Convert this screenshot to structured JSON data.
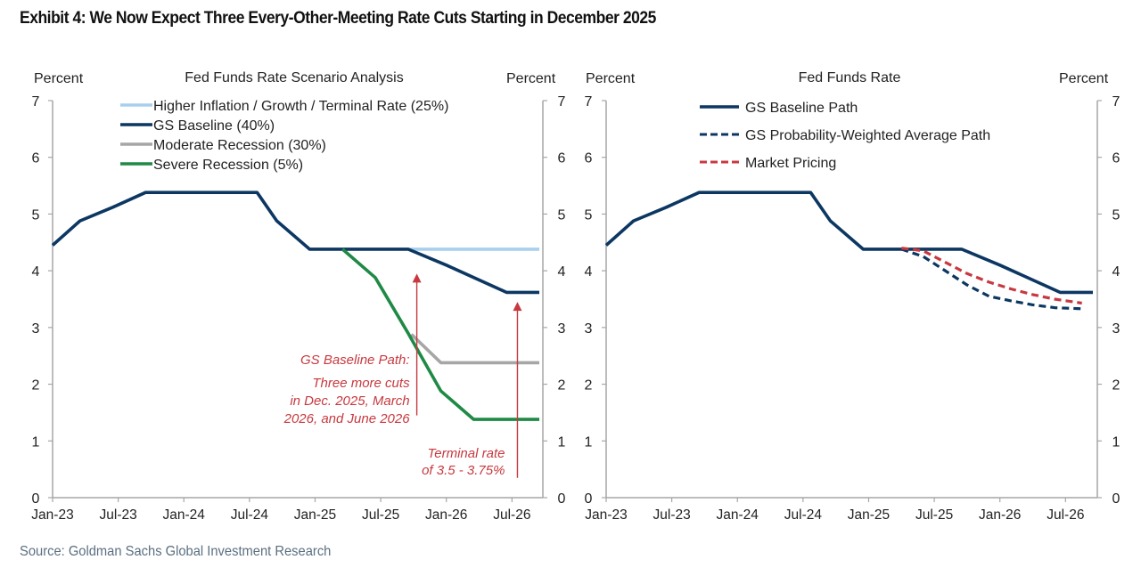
{
  "page": {
    "title": "Exhibit 4: We Now Expect Three Every-Other-Meeting Rate Cuts Starting in December 2025",
    "source": "Source: Goldman Sachs Global Investment Research"
  },
  "colors": {
    "navy": "#0c3762",
    "light_blue": "#a9cfee",
    "gray": "#a6a6a6",
    "green": "#1f8a45",
    "red": "#c7393f",
    "axis": "#a6a6a6"
  },
  "chart_data": [
    {
      "type": "line",
      "title": "Fed Funds Rate Scenario Analysis",
      "ylabel_left": "Percent",
      "ylabel_right": "Percent",
      "ylim": [
        0,
        7
      ],
      "yticks": [
        "0",
        "1",
        "2",
        "3",
        "4",
        "5",
        "6",
        "7"
      ],
      "xticks": [
        "Jan-23",
        "Jul-23",
        "Jan-24",
        "Jul-24",
        "Jan-25",
        "Jul-25",
        "Jan-26",
        "Jul-26"
      ],
      "x_unit": "months since Jan-23",
      "xlim": [
        0,
        44.5
      ],
      "legend_position": "top-center",
      "series": [
        {
          "name": "Higher Inflation / Growth / Terminal Rate (25%)",
          "color_key": "light_blue",
          "style": "solid",
          "points": [
            [
              32.5,
              4.38
            ],
            [
              44.5,
              4.38
            ]
          ]
        },
        {
          "name": "GS Baseline (40%)",
          "color_key": "navy",
          "style": "solid",
          "points": [
            [
              0,
              4.45
            ],
            [
              2.5,
              4.88
            ],
            [
              5.5,
              5.12
            ],
            [
              8.5,
              5.38
            ],
            [
              18.7,
              5.38
            ],
            [
              20.5,
              4.88
            ],
            [
              23.5,
              4.38
            ],
            [
              32.5,
              4.38
            ],
            [
              36,
              4.1
            ],
            [
              41.5,
              3.62
            ],
            [
              44.5,
              3.62
            ]
          ]
        },
        {
          "name": "Moderate Recession (30%)",
          "color_key": "gray",
          "style": "solid",
          "points": [
            [
              32.8,
              2.88
            ],
            [
              35.5,
              2.38
            ],
            [
              44.5,
              2.38
            ]
          ]
        },
        {
          "name": "Severe Recession (5%)",
          "color_key": "green",
          "style": "solid",
          "points": [
            [
              26.5,
              4.38
            ],
            [
              29.5,
              3.88
            ],
            [
              32.5,
              2.9
            ],
            [
              35.5,
              1.88
            ],
            [
              38.5,
              1.38
            ],
            [
              44.5,
              1.38
            ]
          ]
        }
      ],
      "annotations": [
        {
          "text_lines": [
            "GS Baseline Path:",
            "Three more cuts",
            "in  Dec. 2025, March",
            "2026, and June 2026"
          ],
          "arrow_x": 33.3,
          "arrow_from": 1.45,
          "arrow_to": 3.95
        },
        {
          "text_lines": [
            "Terminal rate",
            "of 3.5 - 3.75%"
          ],
          "arrow_x": 42.5,
          "arrow_from": 0.35,
          "arrow_to": 3.45
        }
      ]
    },
    {
      "type": "line",
      "title": "Fed Funds Rate",
      "ylabel_left": "Percent",
      "ylabel_right": "Percent",
      "ylim": [
        0,
        7
      ],
      "yticks": [
        "0",
        "1",
        "2",
        "3",
        "4",
        "5",
        "6",
        "7"
      ],
      "xticks": [
        "Jan-23",
        "Jul-23",
        "Jan-24",
        "Jul-24",
        "Jan-25",
        "Jul-25",
        "Jan-26",
        "Jul-26"
      ],
      "x_unit": "months since Jan-23",
      "xlim": [
        0,
        44.5
      ],
      "legend_position": "top-center",
      "series": [
        {
          "name": "GS Baseline Path",
          "color_key": "navy",
          "style": "solid",
          "points": [
            [
              0,
              4.45
            ],
            [
              2.5,
              4.88
            ],
            [
              5.5,
              5.12
            ],
            [
              8.5,
              5.38
            ],
            [
              18.7,
              5.38
            ],
            [
              20.5,
              4.88
            ],
            [
              23.5,
              4.38
            ],
            [
              32.5,
              4.38
            ],
            [
              36,
              4.1
            ],
            [
              41.5,
              3.62
            ],
            [
              44.5,
              3.62
            ]
          ]
        },
        {
          "name": "GS Probability-Weighted Average Path",
          "color_key": "navy",
          "style": "dashed",
          "points": [
            [
              27,
              4.38
            ],
            [
              29,
              4.25
            ],
            [
              31,
              4.0
            ],
            [
              33,
              3.75
            ],
            [
              35,
              3.55
            ],
            [
              37,
              3.47
            ],
            [
              39,
              3.4
            ],
            [
              41,
              3.35
            ],
            [
              43.5,
              3.33
            ]
          ]
        },
        {
          "name": "Market Pricing",
          "color_key": "red",
          "style": "dashed",
          "points": [
            [
              27,
              4.4
            ],
            [
              29,
              4.35
            ],
            [
              31,
              4.15
            ],
            [
              33,
              3.95
            ],
            [
              35,
              3.8
            ],
            [
              37,
              3.68
            ],
            [
              39,
              3.58
            ],
            [
              41,
              3.5
            ],
            [
              43.5,
              3.43
            ]
          ]
        }
      ]
    }
  ]
}
